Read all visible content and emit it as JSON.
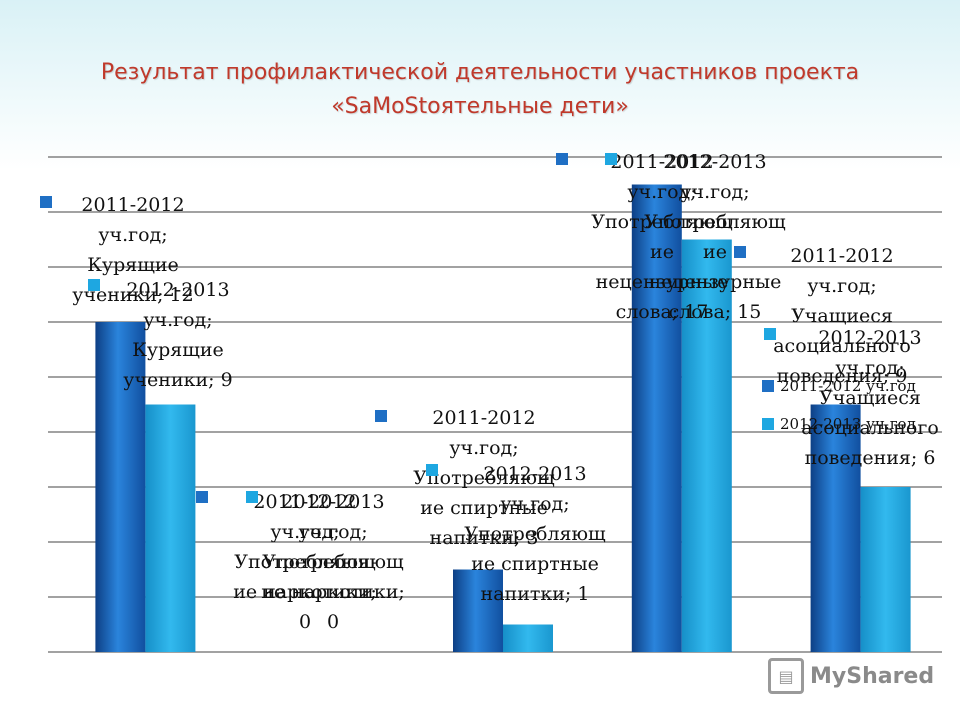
{
  "title_line1": "Результат профилактической деятельности участников проекта",
  "title_line2": "«SaMoStoятельные дети»",
  "watermark": "MyShared",
  "colors": {
    "series_2011": "#1f6fc4",
    "series_2013": "#1ea7e1",
    "gridline": "#444444",
    "title": "#c0392b"
  },
  "chart_data": {
    "type": "bar",
    "categories": [
      "Курящие ученики",
      "Употребляющие наркотики",
      "Употребляющие спиртные напитки",
      "Употребляющие нецензурные слова",
      "Учащиеся асоциального поведения"
    ],
    "series": [
      {
        "name": "2011-2012 уч.год",
        "values": [
          12,
          0,
          3,
          17,
          9
        ]
      },
      {
        "name": "2012-2013 уч.год",
        "values": [
          9,
          0,
          1,
          15,
          6
        ]
      }
    ],
    "ylim": [
      0,
      18
    ],
    "grid": true,
    "data_labels": [
      [
        [
          "2011-2012",
          "уч.год;",
          "Курящие",
          "ученики; 12"
        ],
        [
          "2011-2012",
          "уч.год;",
          "Употребляющ",
          "ие наркотики;",
          "0"
        ],
        [
          "2011-2012",
          "уч.год;",
          "Употребляющ",
          "ие спиртные",
          "напитки; 3"
        ],
        [
          "2011-2012",
          "уч.год;",
          "Употребляющ",
          "ие",
          "нецензурные",
          "слова; 17"
        ],
        [
          "2011-2012",
          "уч.год;",
          "Учащиеся",
          "асоциального",
          "поведения; 9"
        ]
      ],
      [
        [
          "2012-2013",
          "уч.год;",
          "Курящие",
          "ученики; 9"
        ],
        [
          "2012-2013",
          "уч.год;",
          "Употребляющ",
          "ие наркотики;",
          "0"
        ],
        [
          "2012-2013",
          "уч.год;",
          "Употребляющ",
          "ие спиртные",
          "напитки; 1"
        ],
        [
          "2012-2013",
          "уч.год;",
          "Употребляющ",
          "ие",
          "нецензурные",
          "слова; 15"
        ],
        [
          "2012-2013",
          "уч.год;",
          "Учащиеся",
          "асоциального",
          "поведения; 6"
        ]
      ]
    ],
    "legend": [
      "2011-2012 уч.год",
      "2012-2013 уч.год"
    ],
    "legend_position": "right"
  }
}
